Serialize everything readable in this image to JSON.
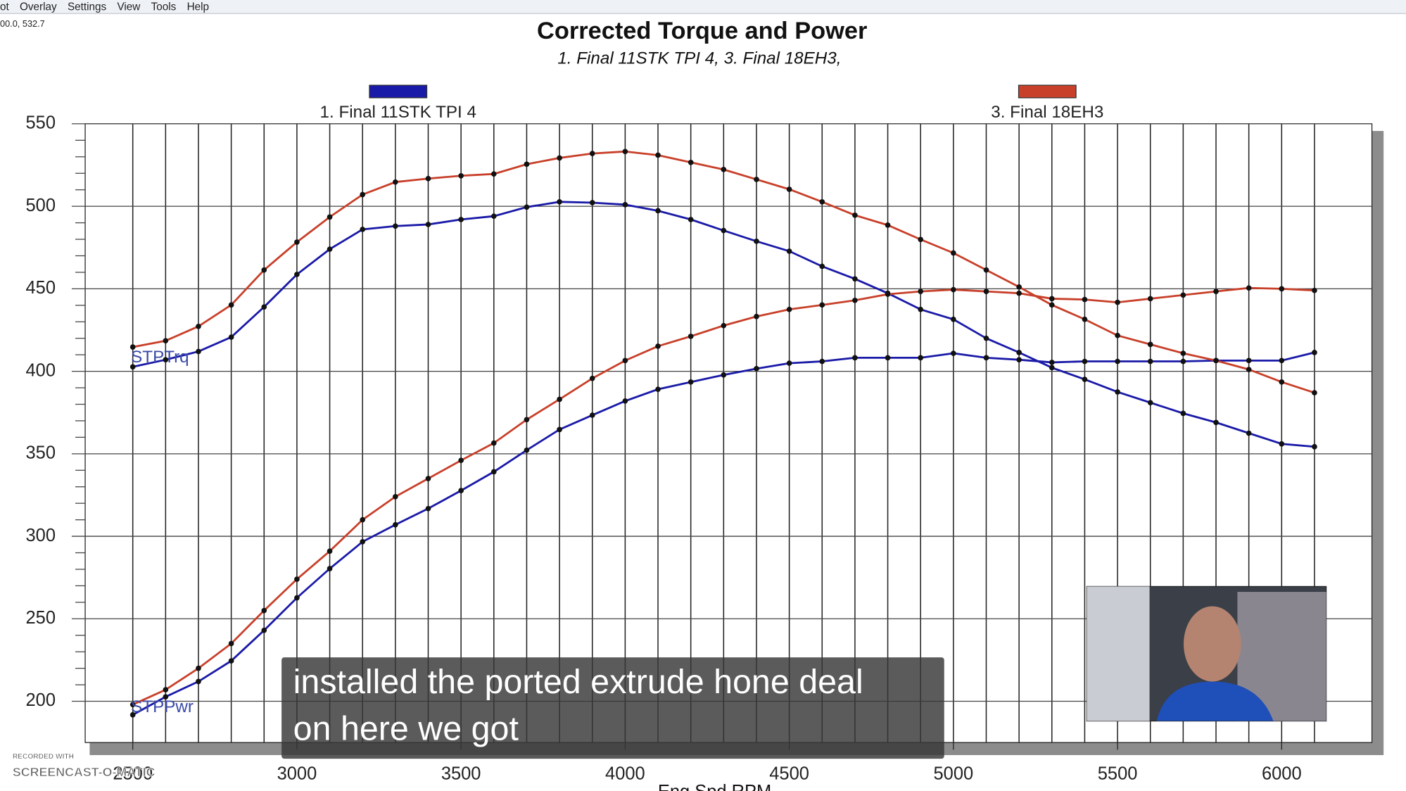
{
  "menu": [
    "ot",
    "Overlay",
    "Settings",
    "View",
    "Tools",
    "Help"
  ],
  "cursor_readout": "00.0, 532.7",
  "chart_data": {
    "type": "line",
    "title": "Corrected Torque and Power",
    "subtitle": "1. Final 11STK TPI 4, 3. Final 18EH3,",
    "x_label": "Eng Spd RPM",
    "curve_labels": [
      "STPTrq",
      "STPPwr"
    ],
    "x": [
      2500,
      2600,
      2700,
      2800,
      2900,
      3000,
      3100,
      3200,
      3300,
      3400,
      3500,
      3600,
      3700,
      3800,
      3900,
      4000,
      4100,
      4200,
      4300,
      4400,
      4500,
      4600,
      4700,
      4800,
      4900,
      5000,
      5100,
      5200,
      5300,
      5400,
      5500,
      5600,
      5700,
      5800,
      5900,
      6000,
      6100
    ],
    "series": [
      {
        "name": "1. Final 11STK TPI 4",
        "color": "#1a1aa8",
        "torque": [
          402.7,
          407,
          412,
          420.7,
          439,
          458.7,
          474,
          486,
          488,
          489,
          492,
          494,
          499.5,
          502.7,
          502.2,
          501,
          497.3,
          492,
          485.3,
          478.8,
          472.8,
          463.6,
          456,
          447.3,
          437.5,
          431.5,
          420,
          411.4,
          402.2,
          395.1,
          387.5,
          381,
          374.5,
          369,
          362.5,
          356,
          354.3
        ],
        "power": [
          191.8,
          202.7,
          212,
          224.5,
          243,
          262.7,
          280.4,
          296.7,
          307,
          316.8,
          327.7,
          339.1,
          352.2,
          364.7,
          373.4,
          382,
          389.1,
          393.5,
          397.8,
          401.6,
          404.9,
          406,
          408.2,
          408.2,
          408.2,
          410.9,
          408.2,
          407,
          405.4,
          406,
          406,
          406,
          406,
          406.5,
          406.5,
          406.5,
          411.4
        ]
      },
      {
        "name": "3. Final 18EH3",
        "color": "#c8402a",
        "torque": [
          414.7,
          418.5,
          427.2,
          440.2,
          461.4,
          478.3,
          493.5,
          507.1,
          514.7,
          516.8,
          518.5,
          519.6,
          525.5,
          529.3,
          532,
          533.2,
          531,
          526.6,
          522.3,
          516.3,
          510.3,
          502.7,
          494.6,
          488.6,
          479.9,
          471.7,
          461.4,
          451.1,
          440.2,
          431.5,
          421.7,
          416.3,
          410.9,
          406.5,
          401.1,
          393.5,
          387
        ],
        "power": [
          198,
          207,
          220,
          235,
          255,
          274,
          291,
          310,
          324,
          335,
          346,
          356.5,
          370.7,
          383,
          395.7,
          406.5,
          415.2,
          421.2,
          427.7,
          433.2,
          437.5,
          440.2,
          443,
          446.7,
          448.4,
          449.5,
          448.4,
          447.3,
          444,
          443.5,
          441.8,
          444,
          446.2,
          448.4,
          450.5,
          450,
          449
        ]
      }
    ],
    "xlim": [
      2355,
      6275
    ],
    "ylim": [
      175,
      550
    ],
    "xticks": [
      2500,
      3000,
      3500,
      4000,
      4500,
      5000,
      5500,
      6000
    ],
    "yticks": [
      200,
      250,
      300,
      350,
      400,
      450,
      500,
      550
    ],
    "grid": true
  },
  "caption": [
    "installed the ported extrude hone deal",
    "on here we got"
  ],
  "watermark": [
    "RECORDED WITH",
    "SCREENCAST-O-MATIC"
  ]
}
